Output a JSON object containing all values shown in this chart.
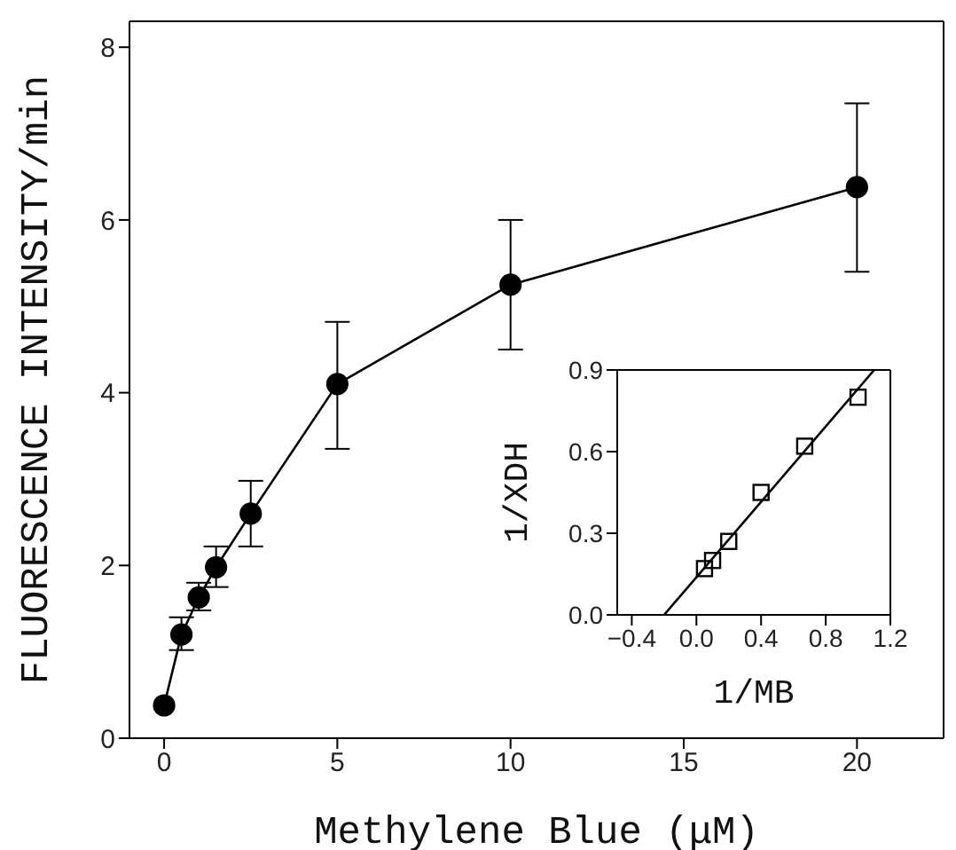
{
  "chart_data": [
    {
      "type": "line",
      "xlabel": "Methylene Blue (μM)",
      "ylabel": "FLUORESCENCE INTENSITY/min",
      "x": [
        0,
        0.5,
        1,
        1.5,
        2.5,
        5,
        10,
        20
      ],
      "values": [
        0.38,
        1.2,
        1.63,
        1.98,
        2.6,
        4.1,
        5.25,
        6.38
      ],
      "errors": [
        null,
        [
          1.02,
          1.4
        ],
        [
          1.48,
          1.8
        ],
        [
          1.75,
          2.22
        ],
        [
          2.22,
          2.98
        ],
        [
          3.35,
          4.82
        ],
        [
          4.5,
          6.0
        ],
        [
          5.4,
          7.35
        ]
      ],
      "color": "#000000",
      "marker": "circle",
      "xlim": [
        -1,
        22.5
      ],
      "ylim": [
        0,
        8.3
      ],
      "xticks": [
        0,
        5,
        10,
        15,
        20
      ],
      "yticks": [
        0,
        2,
        4,
        6,
        8
      ]
    },
    {
      "type": "scatter",
      "xlabel": "1/MB",
      "ylabel": "1/XDH",
      "xlim": [
        -0.49,
        1.2
      ],
      "ylim": [
        0,
        0.9
      ],
      "xticks": [
        {
          "value": -0.4,
          "label": "−0.4"
        },
        {
          "value": 0,
          "label": "0.0"
        },
        {
          "value": 0.4,
          "label": "0.4"
        },
        {
          "value": 0.8,
          "label": "0.8"
        },
        {
          "value": 1.2,
          "label": "1.2"
        }
      ],
      "yticks": [
        {
          "value": 0,
          "label": "0.0"
        },
        {
          "value": 0.3,
          "label": "0.3"
        },
        {
          "value": 0.6,
          "label": "0.6"
        },
        {
          "value": 0.9,
          "label": "0.9"
        }
      ],
      "series": [
        {
          "type": "scatter",
          "color": "#000000",
          "marker": "square",
          "x": [
            0.05,
            0.1,
            0.2,
            0.4,
            0.67,
            1.0
          ],
          "values": [
            0.17,
            0.2,
            0.27,
            0.45,
            0.62,
            0.8
          ]
        },
        {
          "type": "line",
          "color": "#000000",
          "marker": "none",
          "x": [
            -0.2,
            1.1
          ],
          "values": [
            0,
            0.9
          ]
        }
      ]
    }
  ]
}
